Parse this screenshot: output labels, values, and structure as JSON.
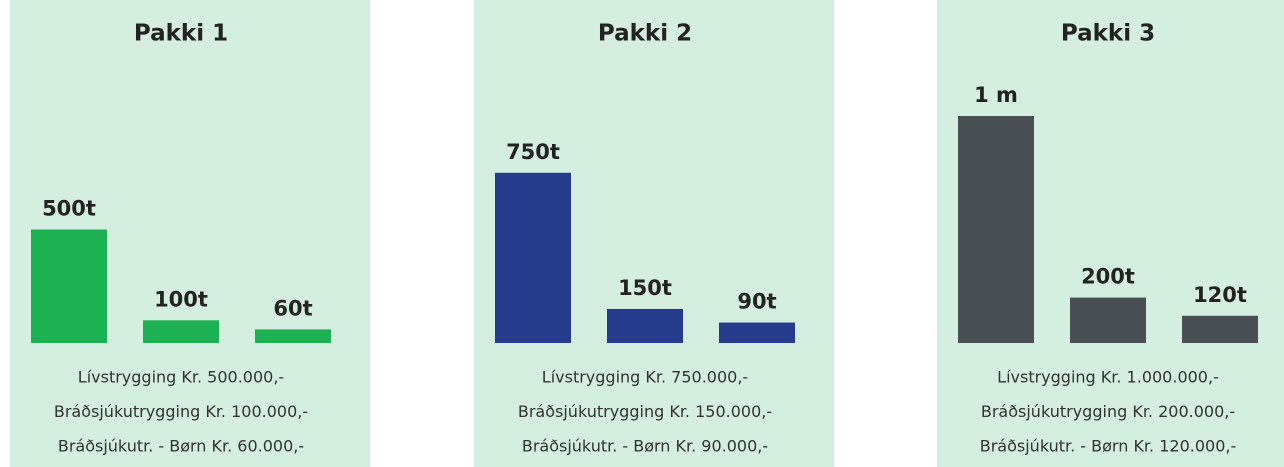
{
  "chart_data": [
    {
      "type": "bar",
      "title": "Pakki 1",
      "categories": [
        null,
        null,
        null
      ],
      "values": [
        500,
        100,
        60
      ],
      "value_labels": [
        "500t",
        "100t",
        "60t"
      ],
      "color": "#1db154",
      "description": [
        "Lívstrygging Kr. 500.000,-",
        "Bráðsjúkutrygging Kr. 100.000,-",
        "Bráðsjúkutr. - Børn Kr. 60.000,-"
      ]
    },
    {
      "type": "bar",
      "title": "Pakki 2",
      "categories": [
        null,
        null,
        null
      ],
      "values": [
        750,
        150,
        90
      ],
      "value_labels": [
        "750t",
        "150t",
        "90t"
      ],
      "color": "#253b8c",
      "description": [
        "Lívstrygging Kr. 750.000,-",
        "Bráðsjúkutrygging Kr. 150.000,-",
        "Bráðsjúkutr. - Børn Kr. 90.000,-"
      ]
    },
    {
      "type": "bar",
      "title": "Pakki 3",
      "categories": [
        null,
        null,
        null
      ],
      "values": [
        1000,
        200,
        120
      ],
      "value_labels": [
        "1 m",
        "200t",
        "120t"
      ],
      "color": "#4a4f54",
      "description": [
        "Lívstrygging Kr. 1.000.000,-",
        "Bráðsjúkutrygging Kr. 200.000,-",
        "Bráðsjúkutr. - Børn Kr. 120.000,-"
      ]
    }
  ]
}
